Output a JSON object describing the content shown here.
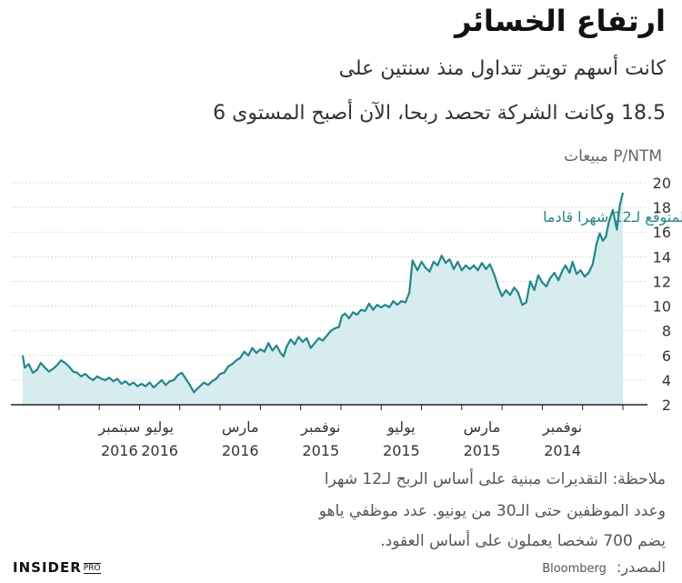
{
  "title": "ارتفاع الخسائر",
  "subtitle_line1": "كانت أسهم تويتر تتداول منذ سنتين على",
  "subtitle_line2": "18.5 وكانت الشركة تحصد ربحا، الآن أصبح المستوى 6",
  "notes": {
    "line1": "ملاحظة: التقديرات مبنية على أساس الربح لـ12 شهرا",
    "line2": "وعدد الموظفين حتى الـ30 من يونيو. عدد موظفي ياهو",
    "line3": "يضم 700 شخصا يعملون على أساس العقود."
  },
  "source_label": "المصدر:",
  "source_name": "Bloomberg",
  "logo": {
    "main": "INSIDER",
    "sub": "PRO"
  },
  "colors": {
    "line": "#23868a",
    "fill": "#d6ecee",
    "grid": "#d9d9d9",
    "axis": "#222222"
  },
  "chart_data": {
    "type": "area",
    "title": "ارتفاع الخسائر",
    "ylabel": "P/NTM مبيعات",
    "xlabel": "",
    "x_axis_direction": "right-to-left",
    "ylim": [
      2,
      20
    ],
    "yticks": [
      2,
      4,
      6,
      8,
      10,
      12,
      14,
      16,
      18,
      20
    ],
    "xticks": [
      {
        "month": "نوفمبر",
        "year": "2014",
        "t": 3
      },
      {
        "month": "مارس",
        "year": "2015",
        "t": 7
      },
      {
        "month": "يوليو",
        "year": "2015",
        "t": 11
      },
      {
        "month": "نوفمبر",
        "year": "2015",
        "t": 15
      },
      {
        "month": "مارس",
        "year": "2016",
        "t": 19
      },
      {
        "month": "يوليو",
        "year": "2016",
        "t": 23
      },
      {
        "month": "سبتمبر",
        "year": "2016",
        "t": 25
      }
    ],
    "annotation": "الربح المتوقع لـ12 شهرا قادما",
    "grid": true,
    "series": [
      {
        "points": [
          [
            0.0,
            19.2
          ],
          [
            0.15,
            18.2
          ],
          [
            0.3,
            16.2
          ],
          [
            0.5,
            17.8
          ],
          [
            0.7,
            16.8
          ],
          [
            0.85,
            15.6
          ],
          [
            1.0,
            15.3
          ],
          [
            1.15,
            15.9
          ],
          [
            1.3,
            15.1
          ],
          [
            1.5,
            13.4
          ],
          [
            1.7,
            12.7
          ],
          [
            1.9,
            12.4
          ],
          [
            2.1,
            12.9
          ],
          [
            2.3,
            12.6
          ],
          [
            2.5,
            13.6
          ],
          [
            2.65,
            12.7
          ],
          [
            2.85,
            13.3
          ],
          [
            3.0,
            12.9
          ],
          [
            3.2,
            12.1
          ],
          [
            3.4,
            12.7
          ],
          [
            3.6,
            12.3
          ],
          [
            3.8,
            11.6
          ],
          [
            4.0,
            11.9
          ],
          [
            4.2,
            12.5
          ],
          [
            4.4,
            11.3
          ],
          [
            4.6,
            12.0
          ],
          [
            4.8,
            10.3
          ],
          [
            5.0,
            10.1
          ],
          [
            5.2,
            11.1
          ],
          [
            5.4,
            11.5
          ],
          [
            5.6,
            10.9
          ],
          [
            5.8,
            11.3
          ],
          [
            6.0,
            10.8
          ],
          [
            6.2,
            11.6
          ],
          [
            6.4,
            12.6
          ],
          [
            6.6,
            13.4
          ],
          [
            6.8,
            13.0
          ],
          [
            7.0,
            13.5
          ],
          [
            7.2,
            12.9
          ],
          [
            7.4,
            13.3
          ],
          [
            7.6,
            13.0
          ],
          [
            7.8,
            13.3
          ],
          [
            8.0,
            12.9
          ],
          [
            8.2,
            13.6
          ],
          [
            8.4,
            13.0
          ],
          [
            8.6,
            13.8
          ],
          [
            8.8,
            13.5
          ],
          [
            9.0,
            14.1
          ],
          [
            9.2,
            13.3
          ],
          [
            9.4,
            13.6
          ],
          [
            9.6,
            12.8
          ],
          [
            9.8,
            13.1
          ],
          [
            10.0,
            13.6
          ],
          [
            10.2,
            12.9
          ],
          [
            10.45,
            13.7
          ],
          [
            10.6,
            11.1
          ],
          [
            10.8,
            10.3
          ],
          [
            11.0,
            10.4
          ],
          [
            11.2,
            10.1
          ],
          [
            11.4,
            10.4
          ],
          [
            11.6,
            9.9
          ],
          [
            11.8,
            10.1
          ],
          [
            12.0,
            9.9
          ],
          [
            12.2,
            10.1
          ],
          [
            12.4,
            9.7
          ],
          [
            12.6,
            10.2
          ],
          [
            12.8,
            9.6
          ],
          [
            13.0,
            9.7
          ],
          [
            13.2,
            9.3
          ],
          [
            13.4,
            9.5
          ],
          [
            13.6,
            9.0
          ],
          [
            13.8,
            9.4
          ],
          [
            13.95,
            9.2
          ],
          [
            14.1,
            8.3
          ],
          [
            14.3,
            8.2
          ],
          [
            14.5,
            8.0
          ],
          [
            14.7,
            7.6
          ],
          [
            14.9,
            7.2
          ],
          [
            15.1,
            7.4
          ],
          [
            15.3,
            7.0
          ],
          [
            15.5,
            6.6
          ],
          [
            15.7,
            7.4
          ],
          [
            15.9,
            7.1
          ],
          [
            16.1,
            7.5
          ],
          [
            16.3,
            6.9
          ],
          [
            16.5,
            7.3
          ],
          [
            16.7,
            6.7
          ],
          [
            16.85,
            5.9
          ],
          [
            17.0,
            6.2
          ],
          [
            17.2,
            6.8
          ],
          [
            17.4,
            6.4
          ],
          [
            17.6,
            7.0
          ],
          [
            17.8,
            6.3
          ],
          [
            18.0,
            6.5
          ],
          [
            18.2,
            6.2
          ],
          [
            18.4,
            6.6
          ],
          [
            18.6,
            6.0
          ],
          [
            18.8,
            6.3
          ],
          [
            19.0,
            5.8
          ],
          [
            19.2,
            5.6
          ],
          [
            19.4,
            5.3
          ],
          [
            19.6,
            5.1
          ],
          [
            19.8,
            4.6
          ],
          [
            20.0,
            4.5
          ],
          [
            20.2,
            4.1
          ],
          [
            20.4,
            3.9
          ],
          [
            20.6,
            3.6
          ],
          [
            20.8,
            3.8
          ],
          [
            21.0,
            3.5
          ],
          [
            21.2,
            3.2
          ],
          [
            21.3,
            3.0
          ],
          [
            21.5,
            3.6
          ],
          [
            21.7,
            4.1
          ],
          [
            21.9,
            4.6
          ],
          [
            22.1,
            4.4
          ],
          [
            22.3,
            4.0
          ],
          [
            22.5,
            3.9
          ],
          [
            22.7,
            3.6
          ],
          [
            22.9,
            4.0
          ],
          [
            23.1,
            3.7
          ],
          [
            23.3,
            3.4
          ],
          [
            23.5,
            3.8
          ],
          [
            23.7,
            3.5
          ],
          [
            23.9,
            3.7
          ],
          [
            24.1,
            3.5
          ],
          [
            24.3,
            3.8
          ],
          [
            24.5,
            3.6
          ],
          [
            24.7,
            3.9
          ],
          [
            24.9,
            3.7
          ],
          [
            25.1,
            4.1
          ],
          [
            25.3,
            3.9
          ],
          [
            25.5,
            4.2
          ],
          [
            25.7,
            4.0
          ],
          [
            25.9,
            4.1
          ],
          [
            26.1,
            4.3
          ],
          [
            26.3,
            4.0
          ],
          [
            26.5,
            4.2
          ],
          [
            26.7,
            4.5
          ],
          [
            26.9,
            4.3
          ],
          [
            27.1,
            4.6
          ],
          [
            27.3,
            4.7
          ],
          [
            27.5,
            5.1
          ],
          [
            27.7,
            5.4
          ],
          [
            27.9,
            5.6
          ],
          [
            28.1,
            5.2
          ],
          [
            28.3,
            4.9
          ],
          [
            28.5,
            4.7
          ],
          [
            28.7,
            5.0
          ],
          [
            28.9,
            5.4
          ],
          [
            29.1,
            4.8
          ],
          [
            29.3,
            4.6
          ],
          [
            29.5,
            5.3
          ],
          [
            29.7,
            5.0
          ],
          [
            29.8,
            6.0
          ]
        ]
      }
    ]
  }
}
